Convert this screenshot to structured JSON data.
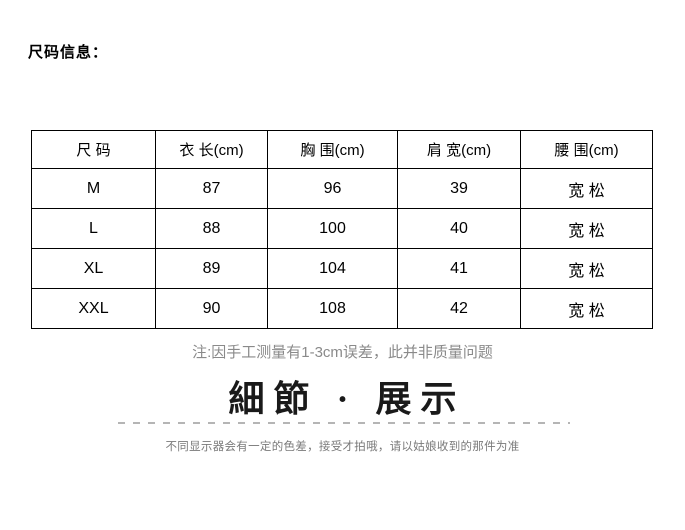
{
  "page": {
    "title": "尺码信息："
  },
  "size_table": {
    "headers": [
      "尺 码",
      "衣 长(cm)",
      "胸 围(cm)",
      "肩 宽(cm)",
      "腰 围(cm)"
    ],
    "rows": [
      [
        "M",
        "87",
        "96",
        "39",
        "宽 松"
      ],
      [
        "L",
        "88",
        "100",
        "40",
        "宽 松"
      ],
      [
        "XL",
        "89",
        "104",
        "41",
        "宽 松"
      ],
      [
        "XXL",
        "90",
        "108",
        "42",
        "宽 松"
      ]
    ]
  },
  "note": "注:因手工测量有1-3cm误差，此并非质量问题",
  "section_title": "細節 · 展示",
  "disclaimer": "不同显示器会有一定的色差，接受才拍哦，请以姑娘收到的那件为准",
  "colors": {
    "text": "#000000",
    "table_border": "#000000",
    "note_gray": "#8a8a8a",
    "disclaimer_gray": "#7a7a7a",
    "divider_gray": "#b5b5b5",
    "background": "#ffffff"
  }
}
